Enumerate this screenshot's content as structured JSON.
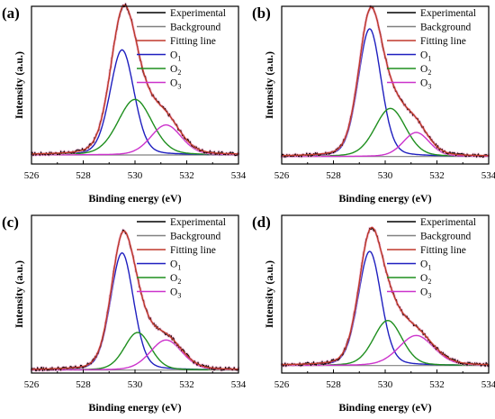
{
  "chart_data": [
    {
      "panel_label": "(a)",
      "type": "line",
      "xlabel": "Binding energy (eV)",
      "ylabel": "Intensity (a.u.)",
      "xlim": [
        526,
        534
      ],
      "xticks": [
        "526",
        "528",
        "530",
        "532",
        "534"
      ],
      "legend_position": "top-right",
      "baseline": 0.06,
      "peaks": [
        {
          "name": "O1",
          "center": 529.5,
          "height": 0.7,
          "fwhm": 1.1
        },
        {
          "name": "O2",
          "center": 530.0,
          "height": 0.37,
          "fwhm": 1.55
        },
        {
          "name": "O3",
          "center": 531.2,
          "height": 0.2,
          "fwhm": 1.4
        }
      ],
      "series": [
        {
          "name": "Experimental",
          "color": "#000000"
        },
        {
          "name": "Background",
          "color": "#808080"
        },
        {
          "name": "Fitting line",
          "color": "#c0392b"
        },
        {
          "name": "O",
          "sub": "1",
          "color": "#1f1fbf"
        },
        {
          "name": "O",
          "sub": "2",
          "color": "#1f8f1f"
        },
        {
          "name": "O",
          "sub": "3",
          "color": "#cc33cc"
        }
      ]
    },
    {
      "panel_label": "(b)",
      "type": "line",
      "xlabel": "Binding energy (eV)",
      "ylabel": "Intensity (a.u.)",
      "xlim": [
        526,
        534
      ],
      "xticks": [
        "526",
        "528",
        "530",
        "532",
        "534"
      ],
      "legend_position": "top-right",
      "baseline": 0.05,
      "peaks": [
        {
          "name": "O1",
          "center": 529.4,
          "height": 0.85,
          "fwhm": 1.05
        },
        {
          "name": "O2",
          "center": 530.2,
          "height": 0.32,
          "fwhm": 1.4
        },
        {
          "name": "O3",
          "center": 531.2,
          "height": 0.16,
          "fwhm": 1.2
        }
      ],
      "series": [
        {
          "name": "Experimental",
          "color": "#000000"
        },
        {
          "name": "Background",
          "color": "#808080"
        },
        {
          "name": "Fitting line",
          "color": "#c0392b"
        },
        {
          "name": "O",
          "sub": "1",
          "color": "#1f1fbf"
        },
        {
          "name": "O",
          "sub": "2",
          "color": "#1f8f1f"
        },
        {
          "name": "O",
          "sub": "3",
          "color": "#cc33cc"
        }
      ]
    },
    {
      "panel_label": "(c)",
      "type": "line",
      "xlabel": "Binding energy (eV)",
      "ylabel": "Intensity (a.u.)",
      "xlim": [
        526,
        534
      ],
      "xticks": [
        "526",
        "528",
        "530",
        "532",
        "534"
      ],
      "legend_position": "top-right",
      "baseline": 0.02,
      "peaks": [
        {
          "name": "O1",
          "center": 529.5,
          "height": 0.78,
          "fwhm": 1.05
        },
        {
          "name": "O2",
          "center": 530.1,
          "height": 0.25,
          "fwhm": 1.2
        },
        {
          "name": "O3",
          "center": 531.2,
          "height": 0.2,
          "fwhm": 1.45
        }
      ],
      "series": [
        {
          "name": "Experimental",
          "color": "#000000"
        },
        {
          "name": "Background",
          "color": "#808080"
        },
        {
          "name": "Fitting line",
          "color": "#c0392b"
        },
        {
          "name": "O",
          "sub": "1",
          "color": "#1f1fbf"
        },
        {
          "name": "O",
          "sub": "2",
          "color": "#1f8f1f"
        },
        {
          "name": "O",
          "sub": "3",
          "color": "#cc33cc"
        }
      ]
    },
    {
      "panel_label": "(d)",
      "type": "line",
      "xlabel": "Binding energy (eV)",
      "ylabel": "Intensity (a.u.)",
      "xlim": [
        526,
        534
      ],
      "xticks": [
        "526",
        "528",
        "530",
        "532",
        "534"
      ],
      "legend_position": "top-right",
      "baseline": 0.05,
      "peaks": [
        {
          "name": "O1",
          "center": 529.4,
          "height": 0.76,
          "fwhm": 1.05
        },
        {
          "name": "O2",
          "center": 530.1,
          "height": 0.3,
          "fwhm": 1.3
        },
        {
          "name": "O3",
          "center": 531.2,
          "height": 0.2,
          "fwhm": 1.6
        }
      ],
      "series": [
        {
          "name": "Experimental",
          "color": "#000000"
        },
        {
          "name": "Background",
          "color": "#808080"
        },
        {
          "name": "Fitting line",
          "color": "#c0392b"
        },
        {
          "name": "O",
          "sub": "1",
          "color": "#1f1fbf"
        },
        {
          "name": "O",
          "sub": "2",
          "color": "#1f8f1f"
        },
        {
          "name": "O",
          "sub": "3",
          "color": "#cc33cc"
        }
      ]
    }
  ]
}
